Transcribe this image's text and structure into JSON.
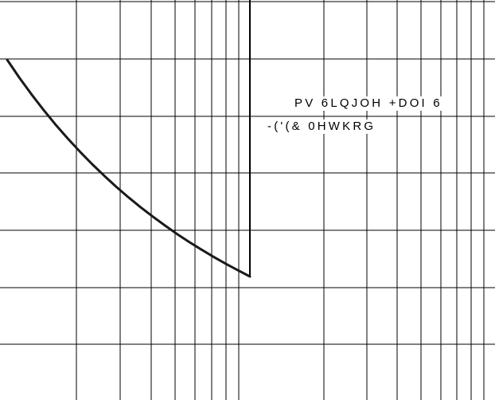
{
  "chart_data": {
    "type": "line",
    "grid": true,
    "x_scale": "log",
    "annotations": [
      "PV 6LQJOH +DOI 6",
      "-('(& 0HWKRG"
    ],
    "series": [
      {
        "x": [
          0.0,
          0.05,
          0.1,
          0.15,
          0.2,
          0.25,
          0.3,
          0.35,
          0.4,
          0.45,
          0.5,
          0.55,
          0.6,
          0.65,
          0.7,
          0.75,
          0.8,
          0.85,
          0.9,
          0.95,
          1.0
        ],
        "y": [
          0.0,
          0.074,
          0.142,
          0.207,
          0.268,
          0.325,
          0.379,
          0.43,
          0.478,
          0.524,
          0.567,
          0.608,
          0.646,
          0.683,
          0.718,
          0.751,
          0.782,
          0.812,
          0.84,
          0.867,
          0.893
        ]
      }
    ],
    "colors": {
      "curve": "#1a1a1a",
      "grid": "#000000"
    }
  }
}
